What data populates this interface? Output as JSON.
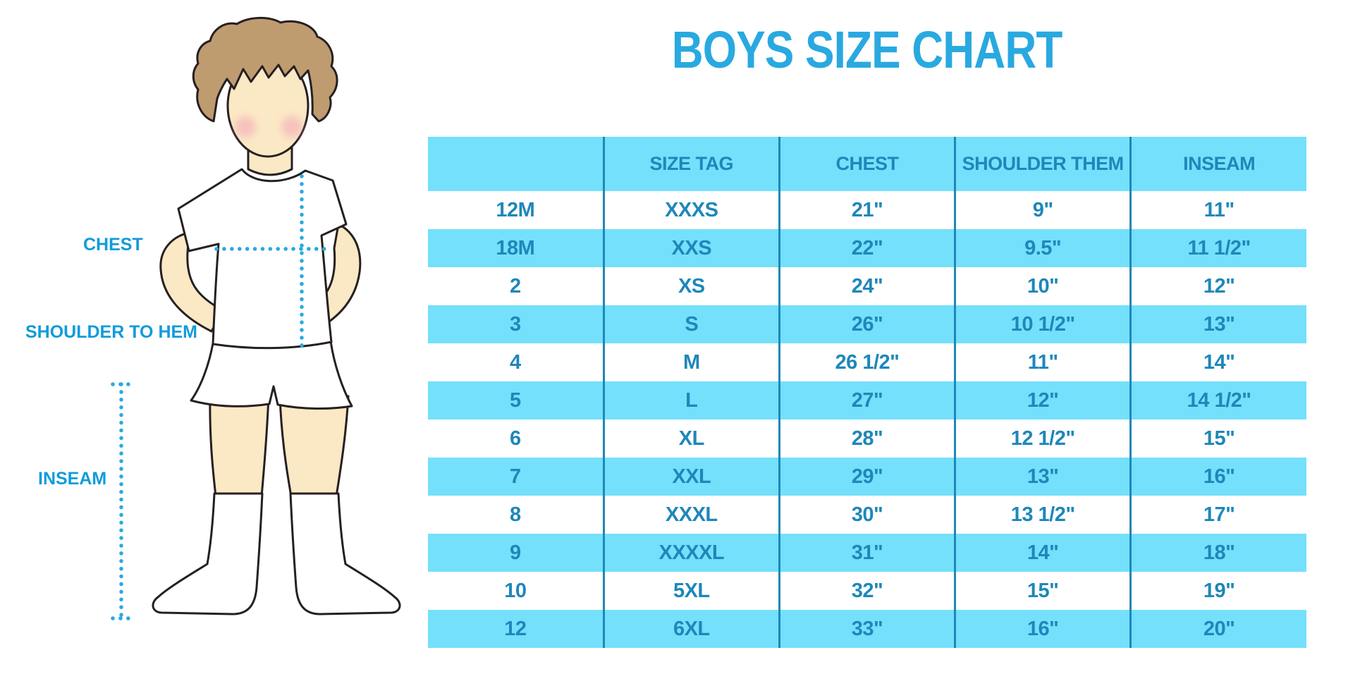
{
  "title": "BOYS SIZE CHART",
  "figure": {
    "labels": {
      "chest": "CHEST",
      "shoulder_to_hem": "SHOULDER TO HEM",
      "inseam": "INSEAM"
    }
  },
  "chart_data": {
    "type": "table",
    "title": "BOYS SIZE CHART",
    "columns": [
      "",
      "SIZE TAG",
      "CHEST",
      "SHOULDER THEM",
      "INSEAM"
    ],
    "rows": [
      [
        "12M",
        "XXXS",
        "21\"",
        "9\"",
        "11\""
      ],
      [
        "18M",
        "XXS",
        "22\"",
        "9.5\"",
        "11 1/2\""
      ],
      [
        "2",
        "XS",
        "24\"",
        "10\"",
        "12\""
      ],
      [
        "3",
        "S",
        "26\"",
        "10 1/2\"",
        "13\""
      ],
      [
        "4",
        "M",
        "26 1/2\"",
        "11\"",
        "14\""
      ],
      [
        "5",
        "L",
        "27\"",
        "12\"",
        "14 1/2\""
      ],
      [
        "6",
        "XL",
        "28\"",
        "12 1/2\"",
        "15\""
      ],
      [
        "7",
        "XXL",
        "29\"",
        "13\"",
        "16\""
      ],
      [
        "8",
        "XXXL",
        "30\"",
        "13 1/2\"",
        "17\""
      ],
      [
        "9",
        "XXXXL",
        "31\"",
        "14\"",
        "18\""
      ],
      [
        "10",
        "5XL",
        "32\"",
        "15\"",
        "19\""
      ],
      [
        "12",
        "6XL",
        "33\"",
        "16\"",
        "20\""
      ]
    ],
    "layout": {
      "header_background": "#74E0FB",
      "alternate_row_background": "#74E0FB",
      "grid": "vertical-dividers-only"
    }
  },
  "colors": {
    "title_blue": "#29A9E0",
    "band_cyan": "#74E0FB",
    "table_text_blue": "#1E87BA",
    "divider_blue": "#1E88B8",
    "label_blue": "#129BDB",
    "dotted_line_blue": "#29A9E0",
    "hair_brown": "#BF9B70",
    "skin_tone": "#FBE8C5",
    "cheek_pink": "#F2A4B8"
  }
}
